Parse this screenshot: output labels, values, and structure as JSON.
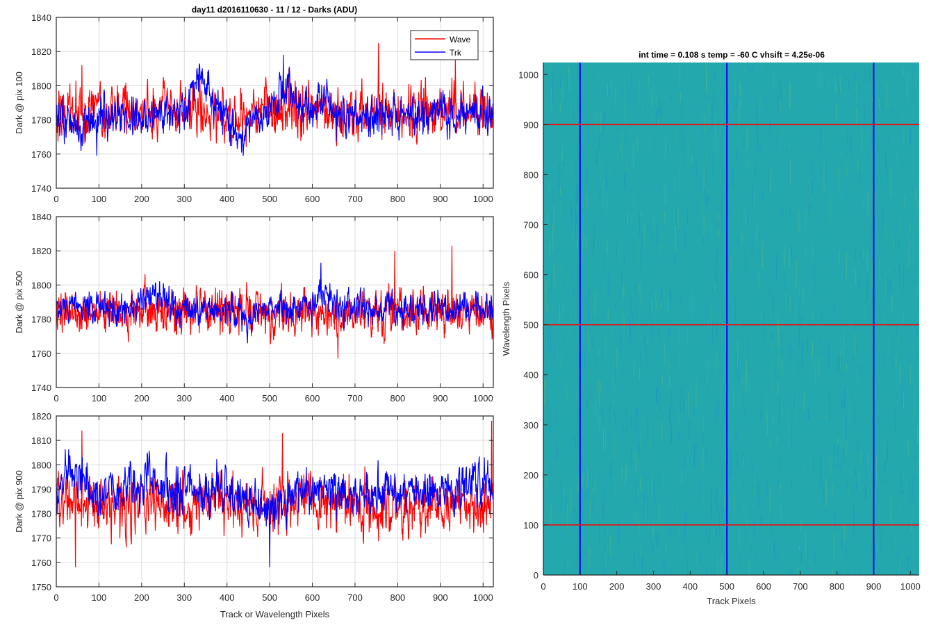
{
  "chart_data": [
    {
      "id": "pix100",
      "type": "line",
      "title": "day11 d2016110630 - 11 / 12 - Darks (ADU)",
      "xlabel": "",
      "ylabel": "Dark @ pix 100",
      "xlim": [
        0,
        1024
      ],
      "ylim": [
        1740,
        1840
      ],
      "xticks": [
        0,
        100,
        200,
        300,
        400,
        500,
        600,
        700,
        800,
        900,
        1000
      ],
      "yticks": [
        1740,
        1760,
        1780,
        1800,
        1820,
        1840
      ],
      "grid": true,
      "legend": {
        "placement": "top-right",
        "entries": [
          "Wave",
          "Trk"
        ]
      },
      "series": [
        {
          "name": "Wave",
          "color": "#ff0000",
          "mean": 1785,
          "noise": 8,
          "spikes": [
            [
              60,
              1812
            ],
            [
              755,
              1825
            ],
            [
              935,
              1815
            ],
            [
              545,
              1810
            ]
          ]
        },
        {
          "name": "Trk",
          "color": "#0000ff",
          "mean": 1783,
          "noise": 6,
          "bumps": [
            [
              50,
              -8,
              40
            ],
            [
              340,
              22,
              30
            ],
            [
              430,
              -12,
              25
            ],
            [
              540,
              16,
              35
            ],
            [
              620,
              8,
              20
            ]
          ],
          "spikes": [
            [
              95,
              1759
            ],
            [
              532,
              1818
            ]
          ]
        }
      ]
    },
    {
      "id": "pix500",
      "type": "line",
      "title": "",
      "xlabel": "",
      "ylabel": "Dark @ pix 500",
      "xlim": [
        0,
        1024
      ],
      "ylim": [
        1740,
        1840
      ],
      "xticks": [
        0,
        100,
        200,
        300,
        400,
        500,
        600,
        700,
        800,
        900,
        1000
      ],
      "yticks": [
        1740,
        1760,
        1780,
        1800,
        1820,
        1840
      ],
      "grid": true,
      "series": [
        {
          "name": "Wave",
          "color": "#ff0000",
          "mean": 1784,
          "noise": 7,
          "spikes": [
            [
              793,
              1820
            ],
            [
              927,
              1823
            ],
            [
              660,
              1757
            ]
          ]
        },
        {
          "name": "Trk",
          "color": "#0000ff",
          "mean": 1786,
          "noise": 5,
          "bumps": [
            [
              230,
              10,
              30
            ],
            [
              620,
              8,
              25
            ],
            [
              450,
              -6,
              20
            ]
          ],
          "spikes": [
            [
              620,
              1813
            ]
          ]
        }
      ]
    },
    {
      "id": "pix900",
      "type": "line",
      "title": "",
      "xlabel": "Track or Wavelength Pixels",
      "ylabel": "Dark @ pix 900",
      "xlim": [
        0,
        1024
      ],
      "ylim": [
        1750,
        1820
      ],
      "xticks": [
        0,
        100,
        200,
        300,
        400,
        500,
        600,
        700,
        800,
        900,
        1000
      ],
      "yticks": [
        1750,
        1760,
        1770,
        1780,
        1790,
        1800,
        1810,
        1820
      ],
      "grid": true,
      "series": [
        {
          "name": "Wave",
          "color": "#ff0000",
          "mean": 1784,
          "noise": 6,
          "spikes": [
            [
              45,
              1758
            ],
            [
              60,
              1814
            ],
            [
              1020,
              1818
            ],
            [
              530,
              1813
            ]
          ]
        },
        {
          "name": "Trk",
          "color": "#0000ff",
          "mean": 1789,
          "noise": 5,
          "bumps": [
            [
              40,
              6,
              40
            ],
            [
              225,
              10,
              20
            ],
            [
              490,
              -8,
              40
            ],
            [
              980,
              5,
              30
            ]
          ],
          "spikes": [
            [
              500,
              1758
            ]
          ]
        }
      ]
    },
    {
      "id": "image",
      "type": "heatmap",
      "title": "int time = 0.108 s   temp = -60 C   vhsift = 4.25e-06",
      "xlabel": "Track Pixels",
      "ylabel": "Wavelength Pixels",
      "xlim": [
        0,
        1024
      ],
      "ylim": [
        0,
        1024
      ],
      "xticks": [
        0,
        100,
        200,
        300,
        400,
        500,
        600,
        700,
        800,
        900,
        1000
      ],
      "yticks": [
        0,
        100,
        200,
        300,
        400,
        500,
        600,
        700,
        800,
        900,
        1000
      ],
      "colormap": "parula",
      "base_color": "#23a8ad",
      "vertical_lines": {
        "color": "#0000ff",
        "x": [
          100,
          500,
          900
        ]
      },
      "horizontal_lines": {
        "color": "#ff0000",
        "y": [
          100,
          500,
          900
        ]
      }
    }
  ]
}
